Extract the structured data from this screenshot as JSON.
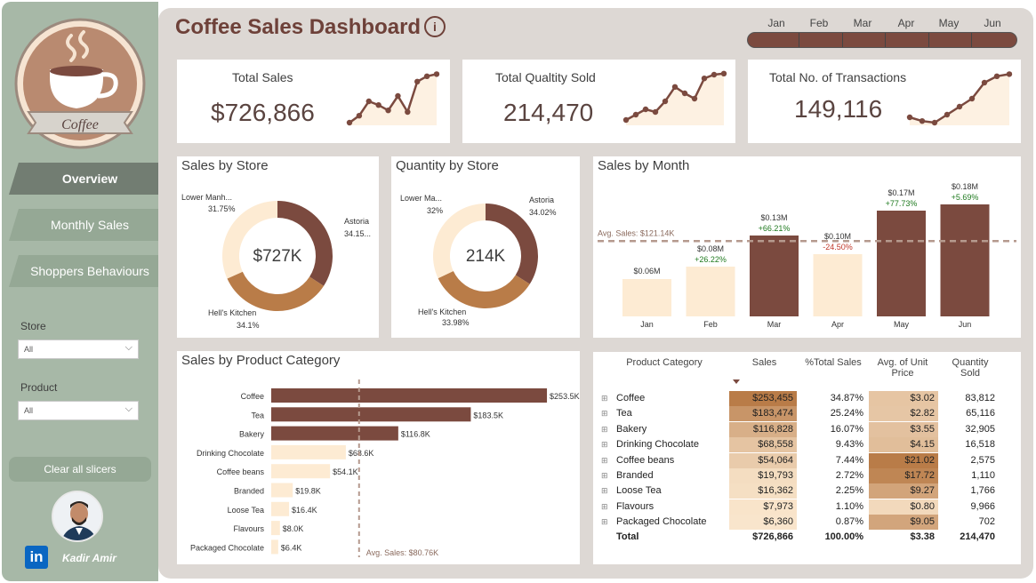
{
  "sidebar": {
    "logo_text": "Coffee",
    "nav": [
      {
        "label": "Overview",
        "active": true
      },
      {
        "label": "Monthly Sales",
        "active": false
      },
      {
        "label": "Shoppers Behaviours",
        "active": false
      }
    ],
    "store_label": "Store",
    "store_value": "All",
    "product_label": "Product",
    "product_value": "All",
    "clear_button": "Clear all slicers",
    "author_name": "Kadir Amir",
    "linkedin_text": "in"
  },
  "header": {
    "title": "Coffee Sales Dashboard",
    "info_icon": "i",
    "months": [
      "Jan",
      "Feb",
      "Mar",
      "Apr",
      "May",
      "Jun"
    ]
  },
  "kpis": [
    {
      "title": "Total Sales",
      "value": "$726,866",
      "trend": [
        0.05,
        0.18,
        0.45,
        0.38,
        0.28,
        0.55,
        0.25,
        0.82,
        0.92,
        0.96
      ]
    },
    {
      "title": "Total Qualtity Sold",
      "value": "214,470",
      "trend": [
        0.1,
        0.2,
        0.3,
        0.25,
        0.45,
        0.72,
        0.6,
        0.5,
        0.88,
        0.95,
        0.97
      ]
    },
    {
      "title": "Total No. of Transactions",
      "value": "149,116",
      "trend": [
        0.15,
        0.08,
        0.05,
        0.2,
        0.35,
        0.5,
        0.8,
        0.92,
        0.96
      ]
    }
  ],
  "store_sales": {
    "title": "Sales by Store",
    "center": "$727K",
    "labels": [
      {
        "name": "Astoria",
        "pct": "34.15..."
      },
      {
        "name": "Hell's Kitchen",
        "pct": "34.1%"
      },
      {
        "name": "Lower Manh...",
        "pct": "31.75%"
      }
    ],
    "slices": [
      34.15,
      34.1,
      31.75
    ]
  },
  "store_qty": {
    "title": "Quantity by Store",
    "center": "214K",
    "labels": [
      {
        "name": "Astoria",
        "pct": "34.02%"
      },
      {
        "name": "Hell's Kitchen",
        "pct": "33.98%"
      },
      {
        "name": "Lower Ma...",
        "pct": "32%"
      }
    ],
    "slices": [
      34.02,
      33.98,
      32
    ]
  },
  "colors": {
    "dark": "#7b4a3f",
    "mid": "#b97c48",
    "light": "#fdebd3",
    "title": "#6e4139",
    "up": "#1f7a1f",
    "down": "#c0392b"
  },
  "chart_data": [
    {
      "type": "bar",
      "title": "Sales by Month",
      "categories": [
        "Jan",
        "Feb",
        "Mar",
        "Apr",
        "May",
        "Jun"
      ],
      "values": [
        0.06,
        0.08,
        0.13,
        0.1,
        0.17,
        0.18
      ],
      "value_labels": [
        "$0.06M",
        "$0.08M",
        "$0.13M",
        "$0.10M",
        "$0.17M",
        "$0.18M"
      ],
      "changes": [
        "",
        "+26.22%",
        "+66.21%",
        "-24.50%",
        "+77.73%",
        "+5.69%"
      ],
      "highlight": [
        false,
        false,
        true,
        false,
        true,
        true
      ],
      "avg_value": 0.121,
      "avg_label": "Avg. Sales: $121.14K",
      "ylim": [
        0,
        0.2
      ]
    },
    {
      "type": "bar",
      "orientation": "horizontal",
      "title": "Sales by Product Category",
      "categories": [
        "Coffee",
        "Tea",
        "Bakery",
        "Drinking Chocolate",
        "Coffee beans",
        "Branded",
        "Loose Tea",
        "Flavours",
        "Packaged Chocolate"
      ],
      "values": [
        253.5,
        183.5,
        116.8,
        68.6,
        54.1,
        19.8,
        16.4,
        8.0,
        6.4
      ],
      "value_labels": [
        "$253.5K",
        "$183.5K",
        "$116.8K",
        "$68.6K",
        "$54.1K",
        "$19.8K",
        "$16.4K",
        "$8.0K",
        "$6.4K"
      ],
      "avg_value": 80.76,
      "avg_label": "Avg. Sales: $80.76K",
      "xlim": [
        0,
        260
      ]
    }
  ],
  "table": {
    "headers": [
      "Product Category",
      "Sales",
      "%Total Sales",
      "Avg. of Unit Price",
      "Quantity Sold"
    ],
    "rows": [
      {
        "cat": "Coffee",
        "sales": "$253,455",
        "pct": "34.87%",
        "price": "$3.02",
        "qty": "83,812",
        "sales_v": 253455,
        "price_v": 3.02
      },
      {
        "cat": "Tea",
        "sales": "$183,474",
        "pct": "25.24%",
        "price": "$2.82",
        "qty": "65,116",
        "sales_v": 183474,
        "price_v": 2.82
      },
      {
        "cat": "Bakery",
        "sales": "$116,828",
        "pct": "16.07%",
        "price": "$3.55",
        "qty": "32,905",
        "sales_v": 116828,
        "price_v": 3.55
      },
      {
        "cat": "Drinking Chocolate",
        "sales": "$68,558",
        "pct": "9.43%",
        "price": "$4.15",
        "qty": "16,518",
        "sales_v": 68558,
        "price_v": 4.15
      },
      {
        "cat": "Coffee beans",
        "sales": "$54,064",
        "pct": "7.44%",
        "price": "$21.02",
        "qty": "2,575",
        "sales_v": 54064,
        "price_v": 21.02
      },
      {
        "cat": "Branded",
        "sales": "$19,793",
        "pct": "2.72%",
        "price": "$17.72",
        "qty": "1,110",
        "sales_v": 19793,
        "price_v": 17.72
      },
      {
        "cat": "Loose Tea",
        "sales": "$16,362",
        "pct": "2.25%",
        "price": "$9.27",
        "qty": "1,766",
        "sales_v": 16362,
        "price_v": 9.27
      },
      {
        "cat": "Flavours",
        "sales": "$7,973",
        "pct": "1.10%",
        "price": "$0.80",
        "qty": "9,966",
        "sales_v": 7973,
        "price_v": 0.8
      },
      {
        "cat": "Packaged Chocolate",
        "sales": "$6,360",
        "pct": "0.87%",
        "price": "$9.05",
        "qty": "702",
        "sales_v": 6360,
        "price_v": 9.05
      }
    ],
    "total": {
      "cat": "Total",
      "sales": "$726,866",
      "pct": "100.00%",
      "price": "$3.38",
      "qty": "214,470"
    }
  }
}
